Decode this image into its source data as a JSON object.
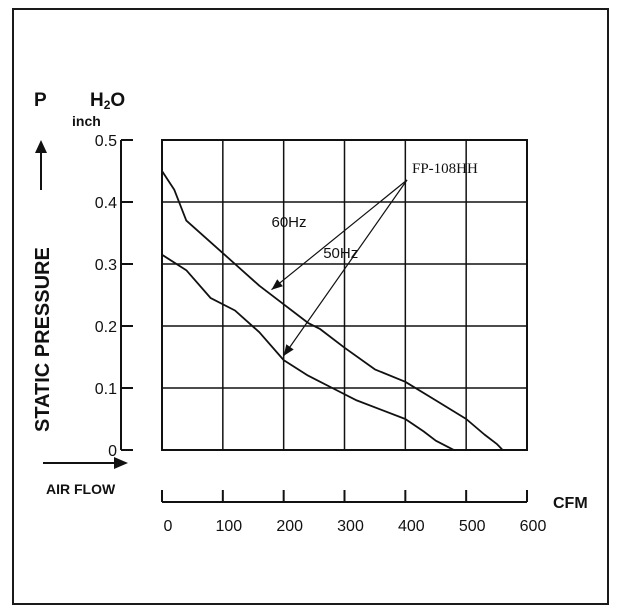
{
  "chart_data": {
    "type": "line",
    "title": "",
    "xlabel": "AIR FLOW",
    "x_unit": "CFM",
    "ylabel": "STATIC PRESSURE",
    "y_symbol": "P",
    "y_unit_main": "H",
    "y_unit_sub": "2",
    "y_unit_tail": "O",
    "y_unit_secondary": "inch",
    "xlim": [
      0,
      600
    ],
    "ylim": [
      0,
      0.5
    ],
    "x_ticks": [
      "0",
      "100",
      "200",
      "300",
      "400",
      "500",
      "600"
    ],
    "y_ticks": [
      "0",
      "0.1",
      "0.2",
      "0.3",
      "0.4",
      "0.5"
    ],
    "grid": true,
    "model_label": "FP-108HH",
    "series": [
      {
        "name": "60Hz",
        "points": [
          [
            0,
            0.45
          ],
          [
            20,
            0.42
          ],
          [
            40,
            0.37
          ],
          [
            80,
            0.335
          ],
          [
            120,
            0.3
          ],
          [
            160,
            0.265
          ],
          [
            200,
            0.235
          ],
          [
            240,
            0.205
          ],
          [
            260,
            0.195
          ],
          [
            300,
            0.165
          ],
          [
            350,
            0.13
          ],
          [
            400,
            0.11
          ],
          [
            450,
            0.08
          ],
          [
            500,
            0.05
          ],
          [
            530,
            0.025
          ],
          [
            550,
            0.01
          ],
          [
            560,
            0.0
          ]
        ]
      },
      {
        "name": "50Hz",
        "points": [
          [
            0,
            0.315
          ],
          [
            40,
            0.29
          ],
          [
            80,
            0.245
          ],
          [
            120,
            0.225
          ],
          [
            160,
            0.19
          ],
          [
            200,
            0.145
          ],
          [
            240,
            0.12
          ],
          [
            280,
            0.1
          ],
          [
            320,
            0.08
          ],
          [
            360,
            0.065
          ],
          [
            400,
            0.05
          ],
          [
            430,
            0.03
          ],
          [
            450,
            0.015
          ],
          [
            470,
            0.005
          ],
          [
            480,
            0.0
          ]
        ]
      }
    ],
    "annotations": [
      {
        "text": "60Hz",
        "x": 180,
        "y": 0.36
      },
      {
        "text": "50Hz",
        "x": 265,
        "y": 0.31
      }
    ]
  }
}
